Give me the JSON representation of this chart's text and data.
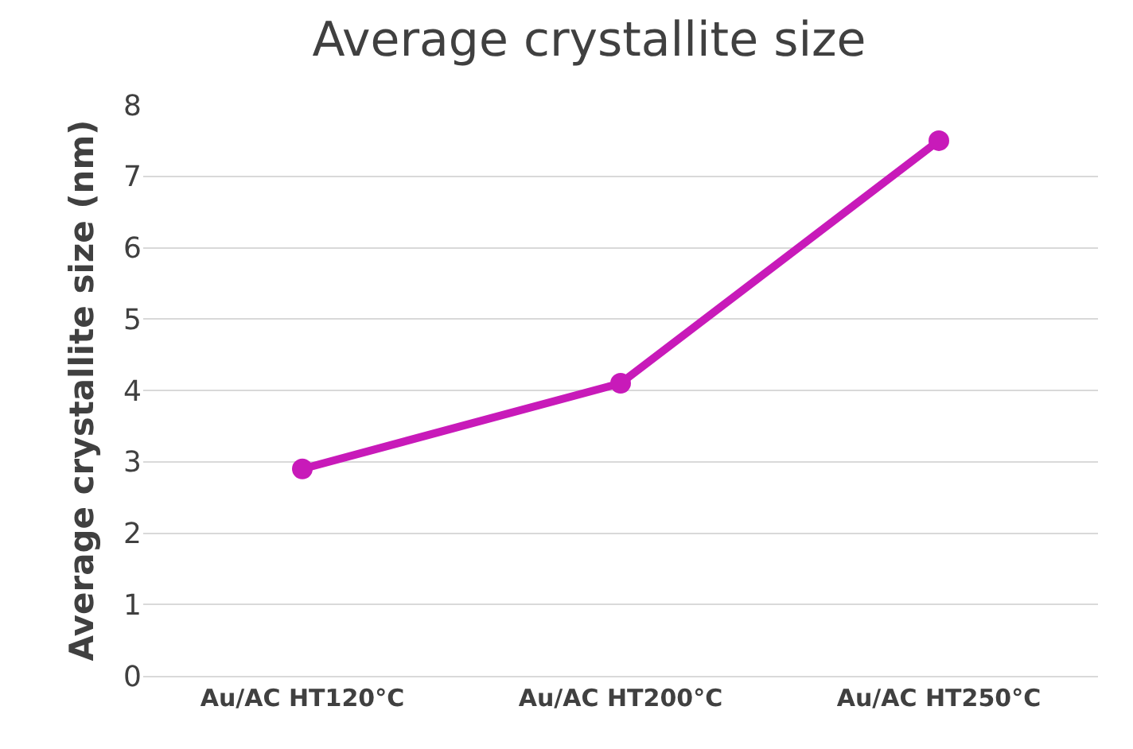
{
  "chart_data": {
    "type": "line",
    "title": "Average crystallite size",
    "ylabel": "Average crystallite size (nm)",
    "categories": [
      "Au/AC HT120°C",
      "Au/AC HT200°C",
      "Au/AC HT250°C"
    ],
    "series": [
      {
        "color": "#c81ab9",
        "values": [
          2.9,
          4.1,
          7.5
        ]
      }
    ],
    "ylim": [
      0,
      8
    ],
    "yticks": [
      0,
      1,
      2,
      3,
      4,
      5,
      6,
      7,
      8
    ],
    "grid": "y",
    "legend": false,
    "marker": "circle",
    "line_style": "solid"
  }
}
